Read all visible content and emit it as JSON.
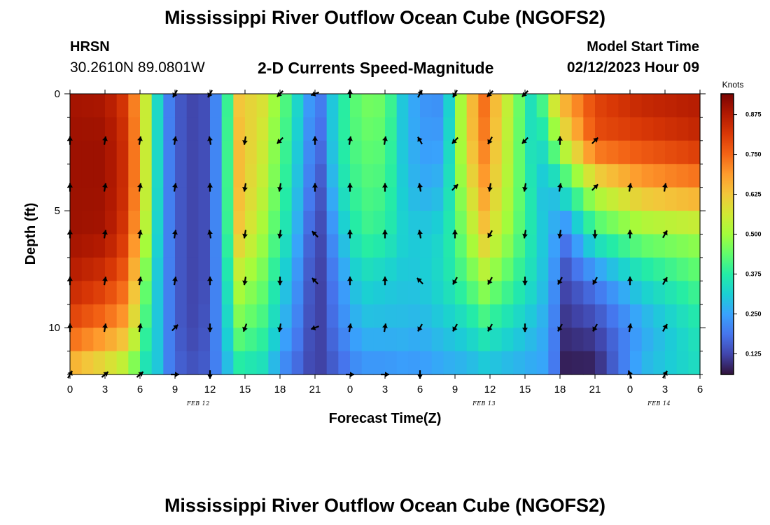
{
  "header": {
    "title": "Mississippi River Outflow Ocean Cube (NGOFS2)",
    "station": "HRSN",
    "coordinates": "30.2610N  89.0801W",
    "subtitle": "2-D Currents Speed-Magnitude",
    "model_start_label": "Model Start Time",
    "model_start_value": "02/12/2023 Hour 09"
  },
  "footer": {
    "title": "Mississippi River Outflow Ocean Cube (NGOFS2)"
  },
  "chart_data": {
    "type": "heatmap",
    "xlabel": "Forecast Time(Z)",
    "ylabel": "Depth (ft)",
    "x_ticks": [
      "0",
      "3",
      "6",
      "9",
      "12",
      "15",
      "18",
      "21",
      "0",
      "3",
      "6",
      "9",
      "12",
      "15",
      "18",
      "21",
      "0",
      "3",
      "6"
    ],
    "date_labels": [
      {
        "label": "FEB 12",
        "at_hour": 11
      },
      {
        "label": "FEB 13",
        "at_hour": 35.5
      },
      {
        "label": "FEB 14",
        "at_hour": 50.5
      }
    ],
    "x_range_hours": [
      0,
      54
    ],
    "y_ticks": [
      "0",
      "5",
      "10"
    ],
    "y_range_ft": [
      0,
      12
    ],
    "colorbar": {
      "label": "Knots",
      "min": 0.06,
      "max": 0.94,
      "ticks": [
        "0.875",
        "0.750",
        "0.625",
        "0.500",
        "0.375",
        "0.250",
        "0.125"
      ],
      "stops": [
        "#30123b",
        "#4145ab",
        "#4675ed",
        "#39a2fc",
        "#1bcfd4",
        "#24eca6",
        "#61fc6c",
        "#a4fc3b",
        "#d1e834",
        "#f3c63a",
        "#fe9b2d",
        "#f36315",
        "#d93806",
        "#b11901",
        "#7a0402"
      ]
    },
    "depth_levels_ft": [
      0,
      2,
      4,
      6,
      8,
      10,
      12
    ],
    "columns": [
      {
        "hour": 0,
        "speed": [
          0.89,
          0.9,
          0.9,
          0.9,
          0.86,
          0.78,
          0.62
        ]
      },
      {
        "hour": 3,
        "speed": [
          0.88,
          0.9,
          0.9,
          0.89,
          0.82,
          0.72,
          0.55
        ]
      },
      {
        "hour": 5,
        "speed": [
          0.8,
          0.82,
          0.82,
          0.8,
          0.74,
          0.66,
          0.48
        ]
      },
      {
        "hour": 6.5,
        "speed": [
          0.55,
          0.55,
          0.55,
          0.52,
          0.45,
          0.4,
          0.34
        ]
      },
      {
        "hour": 7.5,
        "speed": [
          0.33,
          0.33,
          0.33,
          0.32,
          0.3,
          0.3,
          0.3
        ]
      },
      {
        "hour": 8.5,
        "speed": [
          0.2,
          0.2,
          0.2,
          0.2,
          0.2,
          0.2,
          0.2
        ]
      },
      {
        "hour": 10,
        "speed": [
          0.12,
          0.12,
          0.12,
          0.12,
          0.12,
          0.12,
          0.14
        ]
      },
      {
        "hour": 12,
        "speed": [
          0.14,
          0.14,
          0.14,
          0.14,
          0.14,
          0.15,
          0.16
        ]
      },
      {
        "hour": 13,
        "speed": [
          0.28,
          0.28,
          0.28,
          0.28,
          0.27,
          0.26,
          0.24
        ]
      },
      {
        "hour": 14.5,
        "speed": [
          0.62,
          0.64,
          0.64,
          0.62,
          0.52,
          0.45,
          0.35
        ]
      },
      {
        "hour": 16.5,
        "speed": [
          0.58,
          0.56,
          0.54,
          0.5,
          0.45,
          0.4,
          0.33
        ]
      },
      {
        "hour": 18.5,
        "speed": [
          0.42,
          0.4,
          0.38,
          0.35,
          0.3,
          0.26,
          0.2
        ]
      },
      {
        "hour": 20.5,
        "speed": [
          0.24,
          0.22,
          0.2,
          0.17,
          0.15,
          0.14,
          0.13
        ]
      },
      {
        "hour": 21.5,
        "speed": [
          0.2,
          0.18,
          0.15,
          0.13,
          0.12,
          0.12,
          0.12
        ]
      },
      {
        "hour": 23,
        "speed": [
          0.35,
          0.36,
          0.33,
          0.27,
          0.22,
          0.2,
          0.16
        ]
      },
      {
        "hour": 25,
        "speed": [
          0.46,
          0.44,
          0.42,
          0.4,
          0.33,
          0.28,
          0.22
        ]
      },
      {
        "hour": 27,
        "speed": [
          0.45,
          0.43,
          0.41,
          0.38,
          0.31,
          0.28,
          0.22
        ]
      },
      {
        "hour": 28.5,
        "speed": [
          0.3,
          0.3,
          0.31,
          0.32,
          0.3,
          0.28,
          0.23
        ]
      },
      {
        "hour": 30,
        "speed": [
          0.23,
          0.24,
          0.26,
          0.3,
          0.3,
          0.27,
          0.23
        ]
      },
      {
        "hour": 32,
        "speed": [
          0.22,
          0.24,
          0.28,
          0.33,
          0.34,
          0.3,
          0.25
        ]
      },
      {
        "hour": 34,
        "speed": [
          0.6,
          0.6,
          0.55,
          0.48,
          0.42,
          0.33,
          0.26
        ]
      },
      {
        "hour": 35.5,
        "speed": [
          0.74,
          0.72,
          0.68,
          0.62,
          0.5,
          0.38,
          0.28
        ]
      },
      {
        "hour": 40,
        "speed": [
          0.3,
          0.3,
          0.32,
          0.33,
          0.32,
          0.28,
          0.25
        ]
      },
      {
        "hour": 41,
        "speed": [
          0.55,
          0.4,
          0.27,
          0.28,
          0.27,
          0.25,
          0.25
        ]
      },
      {
        "hour": 42.5,
        "speed": [
          0.68,
          0.58,
          0.37,
          0.2,
          0.13,
          0.1,
          0.07
        ]
      },
      {
        "hour": 45,
        "speed": [
          0.8,
          0.78,
          0.55,
          0.38,
          0.2,
          0.12,
          0.07
        ]
      },
      {
        "hour": 49,
        "speed": [
          0.86,
          0.8,
          0.66,
          0.47,
          0.33,
          0.25,
          0.28
        ]
      },
      {
        "hour": 54,
        "speed": [
          0.88,
          0.84,
          0.7,
          0.5,
          0.42,
          0.36,
          0.34
        ]
      }
    ],
    "vectors": {
      "depths_ft": [
        0,
        2,
        4,
        6,
        8,
        10,
        12
      ],
      "hours": [
        0,
        3,
        6,
        9,
        12,
        15,
        18,
        21,
        24,
        27,
        30,
        33,
        36,
        39,
        42,
        45,
        48,
        51
      ],
      "directions_deg": [
        [
          null,
          null,
          null,
          240,
          240,
          null,
          225,
          200,
          90,
          null,
          60,
          240,
          225,
          225,
          null,
          null,
          null,
          null
        ],
        [
          90,
          80,
          80,
          80,
          100,
          260,
          225,
          90,
          80,
          80,
          120,
          225,
          240,
          225,
          90,
          45,
          null,
          null
        ],
        [
          90,
          80,
          80,
          80,
          90,
          260,
          260,
          90,
          90,
          90,
          100,
          45,
          260,
          260,
          80,
          45,
          80,
          80
        ],
        [
          90,
          80,
          80,
          80,
          100,
          260,
          260,
          135,
          90,
          90,
          100,
          90,
          240,
          260,
          260,
          270,
          90,
          60
        ],
        [
          90,
          80,
          80,
          80,
          90,
          260,
          270,
          135,
          90,
          90,
          135,
          240,
          240,
          270,
          240,
          240,
          90,
          60
        ],
        [
          90,
          80,
          80,
          45,
          270,
          250,
          260,
          200,
          80,
          80,
          240,
          240,
          240,
          270,
          240,
          240,
          80,
          60
        ],
        [
          60,
          40,
          40,
          0,
          270,
          null,
          null,
          null,
          0,
          0,
          270,
          null,
          null,
          null,
          null,
          null,
          110,
          60
        ]
      ]
    }
  }
}
